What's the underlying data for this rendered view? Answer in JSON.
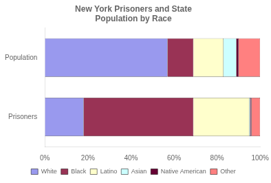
{
  "chart_data": {
    "type": "bar",
    "orientation": "horizontal",
    "stacked": true,
    "title": "New York Prisoners and State\nPopulation by Race",
    "categories": [
      "Prisoners",
      "Population"
    ],
    "series": [
      {
        "name": "White",
        "color": "#9999EE",
        "values": [
          18,
          57
        ]
      },
      {
        "name": "Black",
        "color": "#993355",
        "values": [
          51,
          12
        ]
      },
      {
        "name": "Latino",
        "color": "#FFFFCC",
        "values": [
          26,
          14
        ]
      },
      {
        "name": "Asian",
        "color": "#CCFFFF",
        "values": [
          0.5,
          6
        ]
      },
      {
        "name": "Native American",
        "color": "#660033",
        "values": [
          0.5,
          1
        ]
      },
      {
        "name": "Other",
        "color": "#FF8080",
        "values": [
          4,
          10
        ]
      }
    ],
    "xlim": [
      0,
      100
    ],
    "xticks": [
      {
        "value": 0,
        "label": "0%"
      },
      {
        "value": 20,
        "label": "20%"
      },
      {
        "value": 40,
        "label": "40%"
      },
      {
        "value": 60,
        "label": "60%"
      },
      {
        "value": 80,
        "label": "80%"
      },
      {
        "value": 100,
        "label": "100%"
      }
    ],
    "grid": false,
    "legend": "bottom"
  }
}
